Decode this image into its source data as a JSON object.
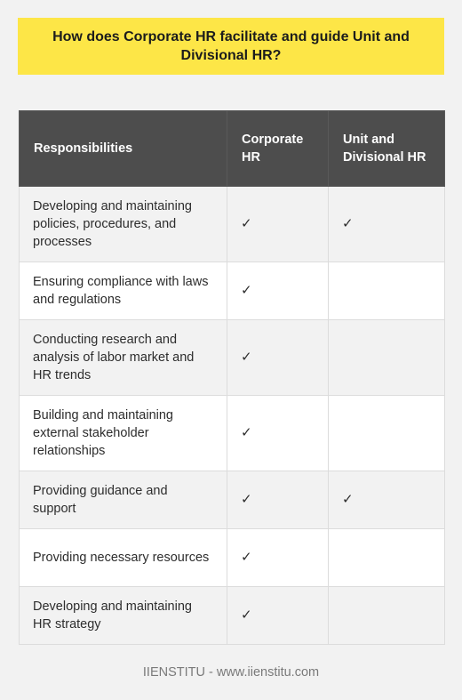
{
  "title": "How does Corporate HR facilitate and guide Unit and Divisional HR?",
  "table": {
    "headers": {
      "responsibilities": "Responsibilities",
      "corporate": "Corporate HR",
      "unit": "Unit and Divisional HR"
    },
    "rows": [
      {
        "responsibility": "Developing and maintaining policies, procedures, and processes",
        "corporate": "✓",
        "unit": "✓"
      },
      {
        "responsibility": "Ensuring compliance with laws and regulations",
        "corporate": "✓",
        "unit": ""
      },
      {
        "responsibility": "Conducting research and analysis of labor market and HR trends",
        "corporate": "✓",
        "unit": ""
      },
      {
        "responsibility": "Building and maintaining external stakeholder relationships",
        "corporate": "✓",
        "unit": ""
      },
      {
        "responsibility": "Providing guidance and support",
        "corporate": "✓",
        "unit": "✓"
      },
      {
        "responsibility": "Providing necessary resources",
        "corporate": "✓",
        "unit": ""
      },
      {
        "responsibility": "Developing and maintaining HR strategy",
        "corporate": "✓",
        "unit": ""
      }
    ]
  },
  "footer": "IIENSTITU - www.iienstitu.com"
}
